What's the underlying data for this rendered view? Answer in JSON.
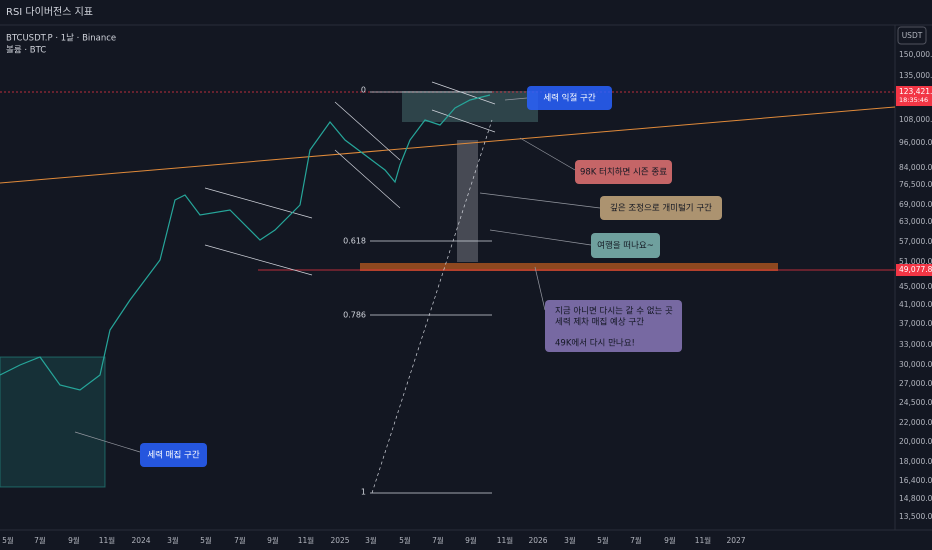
{
  "header": {
    "title": "RSI 다이버전스 지표"
  },
  "symbol": {
    "line1": "BTCUSDT.P · 1날 · Binance",
    "line2": "볼륨 · BTC"
  },
  "currency": "USDT",
  "price_axis": {
    "ticks": [
      "150,000.0",
      "135,000.0",
      "108,000.0",
      "96,000.0",
      "84,000.0",
      "76,500.0",
      "69,000.0",
      "63,000.0",
      "57,000.0",
      "51,000.0",
      "45,000.0",
      "41,000.0",
      "37,000.0",
      "33,000.0",
      "30,000.0",
      "27,000.0",
      "24,500.0",
      "22,000.0",
      "20,000.0",
      "18,000.0",
      "16,400.0",
      "14,800.0",
      "13,500.0"
    ],
    "last_price": "123,421.9",
    "countdown": "18:35:46",
    "level_tag": "49,077.8"
  },
  "time_axis": {
    "labels": [
      "5월",
      "7월",
      "9월",
      "11월",
      "2024",
      "3월",
      "5월",
      "7월",
      "9월",
      "11월",
      "2025",
      "3월",
      "5월",
      "7월",
      "9월",
      "11월",
      "2026",
      "3월",
      "5월",
      "7월",
      "9월",
      "11월",
      "2027"
    ]
  },
  "fib_labels": [
    "0",
    "0.618",
    "0.786",
    "1"
  ],
  "annotations": [
    {
      "lines": [
        "세력 익절 구간"
      ]
    },
    {
      "lines": [
        "98K 터치하면 시즌 종료"
      ]
    },
    {
      "lines": [
        "깊은 조정으로 개미털기 구간"
      ]
    },
    {
      "lines": [
        "여행을 떠나요~"
      ]
    },
    {
      "lines": [
        "지금 아니면 다시는 갈 수 없는 곳",
        "세력 제차 매집 예상 구간",
        "49K에서 다시 만나요!"
      ]
    },
    {
      "lines": [
        "세력 매집 구간"
      ]
    }
  ]
}
